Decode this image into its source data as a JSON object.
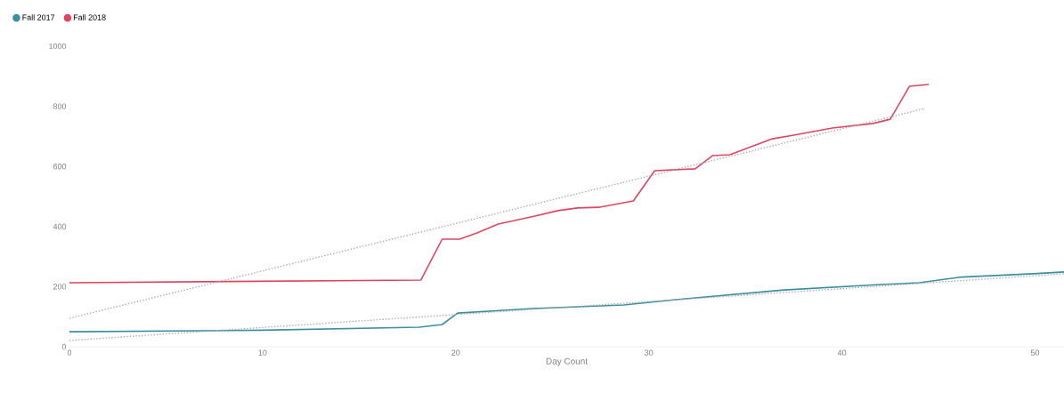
{
  "chart_data": {
    "type": "line",
    "xlabel": "Day Count",
    "xlim": [
      0,
      51.5
    ],
    "xticks": [
      0,
      10,
      20,
      30,
      40,
      50
    ],
    "ylim": [
      0,
      1000
    ],
    "yticks": [
      0,
      200,
      400,
      600,
      800,
      1000
    ],
    "grid": false,
    "legend": "top left",
    "marker": "none",
    "line_style": "solid",
    "series": [
      {
        "name": "Fall 2017",
        "color": "#3a8fa0",
        "x": [
          0,
          10,
          18.1,
          19.3,
          20.1,
          24,
          28.7,
          31.9,
          37,
          42,
          44,
          46.2,
          49.9,
          51.5
        ],
        "values": [
          50,
          55,
          65,
          74,
          112,
          127,
          139,
          160,
          189,
          207,
          213,
          232,
          243,
          249
        ]
      },
      {
        "name": "Fall 2018",
        "color": "#e0455f",
        "x": [
          0,
          18.2,
          19.3,
          20.2,
          21.1,
          22.2,
          23.9,
          25.3,
          26.3,
          27.4,
          29.2,
          30.3,
          32.4,
          33.3,
          34.2,
          36.4,
          37.5,
          39.5,
          41.6,
          42.5,
          43.5,
          44.5
        ],
        "values": [
          213,
          222,
          358,
          358,
          379,
          408,
          432,
          453,
          462,
          464,
          485,
          586,
          592,
          636,
          639,
          692,
          704,
          728,
          743,
          757,
          867,
          873
        ]
      },
      {
        "type": "line",
        "line_style": "dotted",
        "color": "#aaaaaa",
        "x": [
          0,
          51.5
        ],
        "values": [
          21,
          243
        ]
      },
      {
        "type": "line",
        "line_style": "dotted",
        "color": "#aaaaaa",
        "x": [
          0,
          44.3
        ],
        "values": [
          95,
          793
        ]
      }
    ]
  }
}
